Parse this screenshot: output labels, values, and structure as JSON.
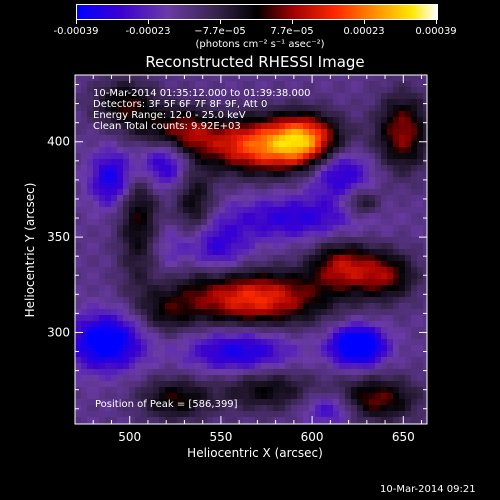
{
  "colorbar": {
    "tick_labels": [
      "-0.00039",
      "-0.00023",
      "−7.7e−05",
      "7.7e−05",
      "0.00023",
      "0.00039"
    ],
    "unit_label": "(photons cm⁻² s⁻¹ asec⁻²)",
    "range": [
      -0.00039,
      0.00039
    ]
  },
  "chart_data": {
    "type": "heatmap",
    "title": "Reconstructed RHESSI Image",
    "xlabel": "Heliocentric X (arcsec)",
    "ylabel": "Heliocentric Y (arcsec)",
    "xlim": [
      470,
      663
    ],
    "ylim": [
      252,
      435
    ],
    "x_ticks": [
      500,
      550,
      600,
      650
    ],
    "y_ticks": [
      300,
      350,
      400
    ],
    "annotations": [
      "10-Mar-2014 01:35:12.000 to 01:39:38.000",
      "Detectors: 3F 5F 6F 7F 8F 9F, Att 0",
      "Energy Range: 12.0 - 25.0 keV",
      "Clean     Total counts: 9.92E+03"
    ],
    "peak_label": "Position of Peak = [586,399]",
    "peak_position": [
      586,
      399
    ],
    "colormap": [
      "#0000ff",
      "#4a00c8",
      "#6a3aa6",
      "#402a5e",
      "#000000",
      "#a00000",
      "#ff2a00",
      "#ff9a00",
      "#ffe800",
      "#ffffff"
    ],
    "blobs": [
      {
        "x": 575,
        "y": 398,
        "sx": 26,
        "sy": 10,
        "amp": 1.0
      },
      {
        "x": 525,
        "y": 405,
        "sx": 14,
        "sy": 9,
        "amp": 0.55
      },
      {
        "x": 596,
        "y": 402,
        "sx": 12,
        "sy": 9,
        "amp": 0.6
      },
      {
        "x": 497,
        "y": 420,
        "sx": 12,
        "sy": 9,
        "amp": 0.45
      },
      {
        "x": 568,
        "y": 318,
        "sx": 28,
        "sy": 10,
        "amp": 0.85
      },
      {
        "x": 616,
        "y": 335,
        "sx": 12,
        "sy": 9,
        "amp": 0.6
      },
      {
        "x": 640,
        "y": 330,
        "sx": 12,
        "sy": 9,
        "amp": 0.55
      },
      {
        "x": 635,
        "y": 265,
        "sx": 16,
        "sy": 8,
        "amp": 0.55
      },
      {
        "x": 650,
        "y": 405,
        "sx": 10,
        "sy": 14,
        "amp": 0.6
      },
      {
        "x": 627,
        "y": 368,
        "sx": 7,
        "sy": 5,
        "amp": 0.4
      },
      {
        "x": 505,
        "y": 360,
        "sx": 8,
        "sy": 25,
        "amp": 0.45
      },
      {
        "x": 535,
        "y": 365,
        "sx": 8,
        "sy": 24,
        "amp": 0.45
      },
      {
        "x": 520,
        "y": 310,
        "sx": 10,
        "sy": 8,
        "amp": 0.3
      },
      {
        "x": 525,
        "y": 265,
        "sx": 14,
        "sy": 8,
        "amp": 0.45
      },
      {
        "x": 575,
        "y": 270,
        "sx": 18,
        "sy": 8,
        "amp": 0.4
      },
      {
        "x": 590,
        "y": 360,
        "sx": 25,
        "sy": 8,
        "amp": -0.4
      },
      {
        "x": 625,
        "y": 293,
        "sx": 10,
        "sy": 7,
        "amp": -0.9
      },
      {
        "x": 487,
        "y": 295,
        "sx": 14,
        "sy": 10,
        "amp": -0.7
      },
      {
        "x": 540,
        "y": 345,
        "sx": 16,
        "sy": 10,
        "amp": -0.5
      },
      {
        "x": 520,
        "y": 390,
        "sx": 14,
        "sy": 10,
        "amp": -0.6
      },
      {
        "x": 615,
        "y": 385,
        "sx": 12,
        "sy": 10,
        "amp": -0.5
      },
      {
        "x": 560,
        "y": 290,
        "sx": 20,
        "sy": 8,
        "amp": -0.5
      },
      {
        "x": 610,
        "y": 260,
        "sx": 10,
        "sy": 6,
        "amp": -0.4
      },
      {
        "x": 490,
        "y": 380,
        "sx": 8,
        "sy": 10,
        "amp": -0.5
      }
    ]
  },
  "timestamp": "10-Mar-2014 09:21"
}
